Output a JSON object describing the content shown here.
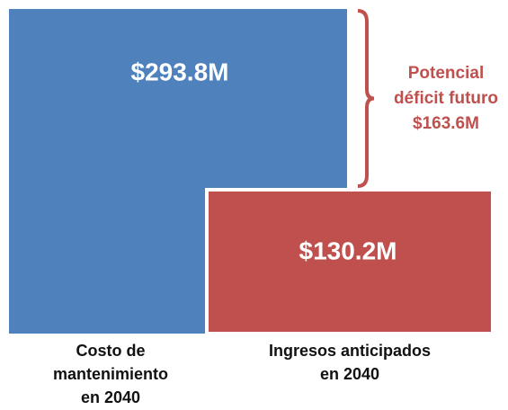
{
  "chart_data": {
    "type": "bar",
    "categories": [
      "Costo de mantenimiento en 2040",
      "Ingresos anticipados en 2040"
    ],
    "values": [
      293.8,
      130.2
    ],
    "value_labels": [
      "$293.8M",
      "$130.2M"
    ],
    "colors": [
      "#4f81bd",
      "#c0504d"
    ],
    "annotation": {
      "lines": [
        "Potencial",
        "déficit futuro"
      ],
      "value": 163.6,
      "value_label": "$163.6M",
      "color": "#c0504d"
    }
  }
}
